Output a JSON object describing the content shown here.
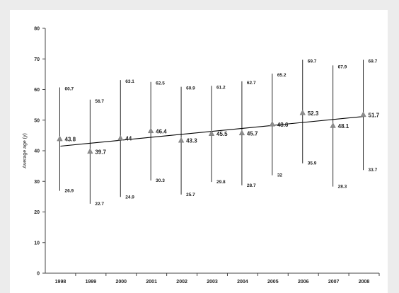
{
  "chart_data": {
    "type": "scatter",
    "title": "",
    "xlabel": "",
    "ylabel": "Average age (y)",
    "categories": [
      "1998",
      "1999",
      "2000",
      "2001",
      "2002",
      "2003",
      "2004",
      "2005",
      "2006",
      "2007",
      "2008"
    ],
    "ylim": [
      0,
      80
    ],
    "yticks": [
      "0",
      "10",
      "20",
      "30",
      "40",
      "50",
      "60",
      "70",
      "80"
    ],
    "grid": false,
    "legend": "none",
    "marker": "triangle",
    "marker_color": "#8c8c8c",
    "line_color": "#000000",
    "series": [
      {
        "values": [
          43.8,
          39.7,
          44,
          46.4,
          43.3,
          45.5,
          45.7,
          48.6,
          52.3,
          48.1,
          51.7
        ],
        "labels": [
          "43.8",
          "39.7",
          "44",
          "46.4",
          "43.3",
          "45.5",
          "45.7",
          "48.6",
          "52.3",
          "48.1",
          "51.7"
        ]
      }
    ],
    "range_max": [
      60.7,
      56.7,
      63.1,
      62.5,
      60.9,
      61.2,
      62.7,
      65.2,
      69.7,
      67.9,
      69.7
    ],
    "range_max_labels": [
      "60.7",
      "56.7",
      "63.1",
      "62.5",
      "60.9",
      "61.2",
      "62.7",
      "65.2",
      "69.7",
      "67.9",
      "69.7"
    ],
    "range_min": [
      26.9,
      22.7,
      24.9,
      30.3,
      25.7,
      29.8,
      28.7,
      32,
      35.9,
      28.3,
      33.7
    ],
    "range_min_labels": [
      "26.9",
      "22.7",
      "24.9",
      "30.3",
      "25.7",
      "29.8",
      "28.7",
      "32",
      "35.9",
      "28.3",
      "33.7"
    ],
    "trendline": {
      "type": "linear",
      "start": 41.5,
      "end": 51.2
    }
  }
}
